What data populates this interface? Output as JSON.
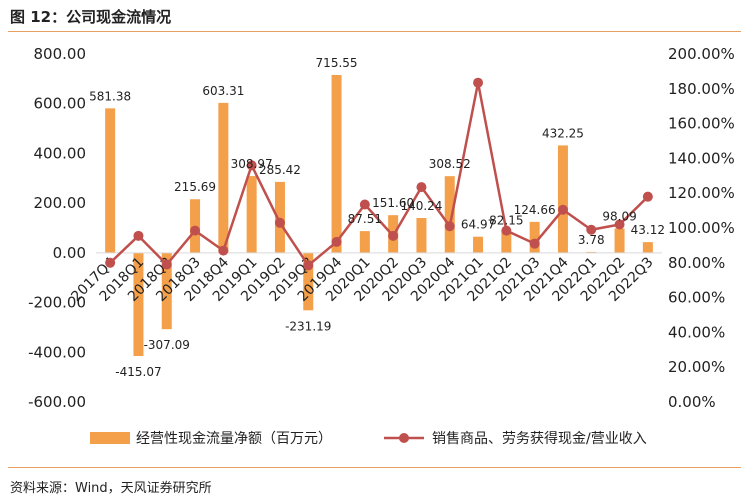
{
  "figure_title": "图 12：公司现金流情况",
  "source": "资料来源：Wind，天风证券研究所",
  "colors": {
    "bar": "#F4A04A",
    "line": "#C0504D",
    "rule": "#E8A060"
  },
  "chart_data": {
    "type": "bar+line",
    "categories": [
      "2017Q4",
      "2018Q1",
      "2018Q2",
      "2018Q3",
      "2018Q4",
      "2019Q1",
      "2019Q2",
      "2019Q3",
      "2019Q4",
      "2020Q1",
      "2020Q2",
      "2020Q3",
      "2020Q4",
      "2021Q1",
      "2021Q2",
      "2021Q3",
      "2021Q4",
      "2022Q1",
      "2022Q2",
      "2022Q3"
    ],
    "series": [
      {
        "name": "经营性现金流量净额（百万元）",
        "type": "bar",
        "axis": "left",
        "values": [
          581.38,
          -415.07,
          -307.09,
          215.69,
          603.31,
          308.97,
          285.42,
          -231.19,
          715.55,
          87.51,
          151.6,
          140.24,
          308.52,
          64.97,
          82.15,
          124.66,
          432.25,
          3.78,
          98.09,
          43.12
        ],
        "labels": [
          "581.38",
          "-415.07",
          "-307.09",
          "215.69",
          "603.31",
          "308.97",
          "285.42",
          "-231.19",
          "715.55",
          "87.51",
          "151.60",
          "140.24",
          "308.52",
          "64.97",
          "82.15",
          "124.66",
          "432.25",
          "3.78",
          "98.09",
          "43.12"
        ]
      },
      {
        "name": "销售商品、劳务获得现金/营业收入",
        "type": "line",
        "axis": "right",
        "values": [
          80.0,
          95.5,
          79.0,
          98.5,
          87.0,
          136.0,
          103.0,
          78.5,
          92.0,
          113.5,
          95.5,
          123.5,
          101.0,
          183.5,
          98.5,
          91.0,
          110.5,
          99.0,
          102.0,
          118.0
        ]
      }
    ],
    "left_axis": {
      "min": -600,
      "max": 800,
      "step": 200,
      "tick_labels": [
        "-600.00",
        "-400.00",
        "-200.00",
        "0.00",
        "200.00",
        "400.00",
        "600.00",
        "800.00"
      ]
    },
    "right_axis": {
      "min": 0,
      "max": 200,
      "step": 20,
      "tick_labels": [
        "0.00%",
        "20.00%",
        "40.00%",
        "60.00%",
        "80.00%",
        "100.00%",
        "120.00%",
        "140.00%",
        "160.00%",
        "180.00%",
        "200.00%"
      ]
    },
    "grid": false,
    "legend_position": "bottom"
  }
}
